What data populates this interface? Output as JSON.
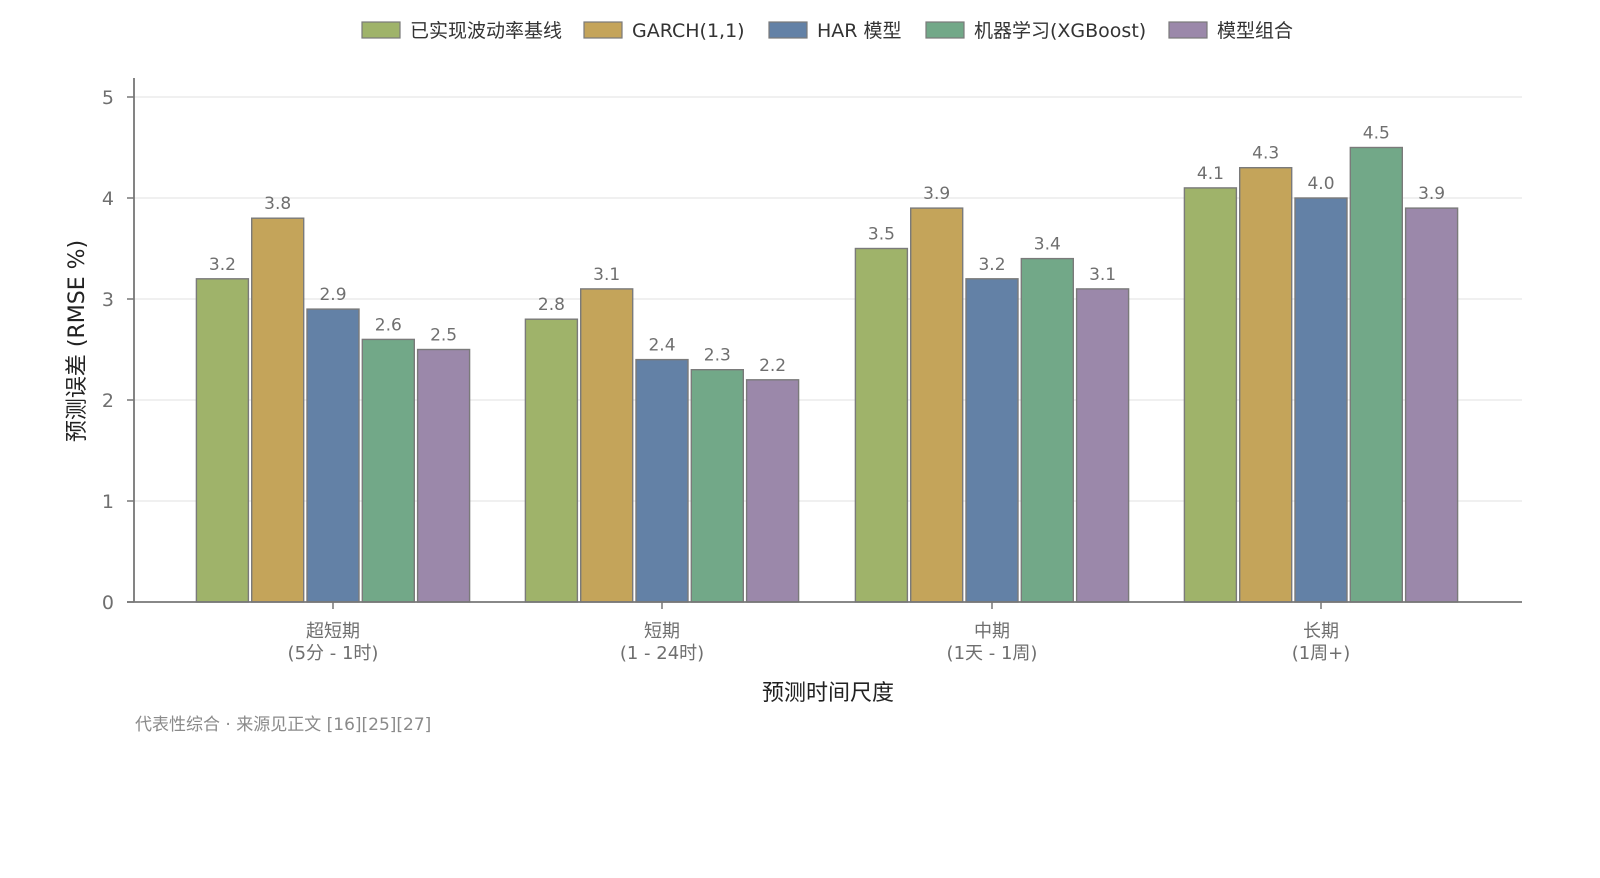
{
  "chart_data": {
    "type": "bar",
    "categories": [
      {
        "line1": "超短期",
        "line2": "(5分 - 1时)"
      },
      {
        "line1": "短期",
        "line2": "(1 - 24时)"
      },
      {
        "line1": "中期",
        "line2": "(1天 - 1周)"
      },
      {
        "line1": "长期",
        "line2": "(1周+)"
      }
    ],
    "series": [
      {
        "name": "已实现波动率基线",
        "color": "#9fb36a",
        "values": [
          3.2,
          2.8,
          3.5,
          4.1
        ]
      },
      {
        "name": "GARCH(1,1)",
        "color": "#c4a45a",
        "values": [
          3.8,
          3.1,
          3.9,
          4.3
        ]
      },
      {
        "name": "HAR 模型",
        "color": "#6381a6",
        "values": [
          2.9,
          2.4,
          3.2,
          4.0
        ]
      },
      {
        "name": "机器学习(XGBoost)",
        "color": "#72a888",
        "values": [
          2.6,
          2.3,
          3.4,
          4.5
        ]
      },
      {
        "name": "模型组合",
        "color": "#9b88aa",
        "values": [
          2.5,
          2.2,
          3.1,
          3.9
        ]
      }
    ],
    "value_labels": [
      [
        "3.2",
        "2.8",
        "3.5",
        "4.1"
      ],
      [
        "3.8",
        "3.1",
        "3.9",
        "4.3"
      ],
      [
        "2.9",
        "2.4",
        "3.2",
        "4.0"
      ],
      [
        "2.6",
        "2.3",
        "3.4",
        "4.5"
      ],
      [
        "2.5",
        "2.2",
        "3.1",
        "3.9"
      ]
    ],
    "xlabel": "预测时间尺度",
    "ylabel": "预测误差 (RMSE %)",
    "ylim": [
      0,
      5
    ],
    "yticks": [
      "0",
      "1",
      "2",
      "3",
      "4",
      "5"
    ],
    "grid": "horizontal",
    "legend_position": "top-center",
    "note": "代表性综合 · 来源见正文 [16][25][27]"
  }
}
